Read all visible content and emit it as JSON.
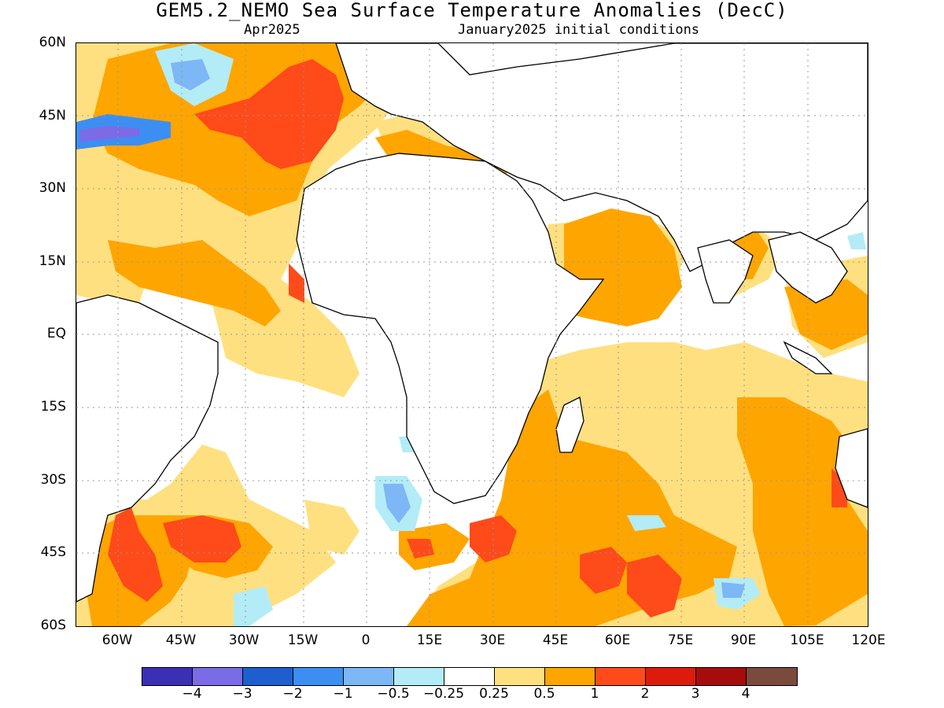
{
  "title": "GEM5.2_NEMO Sea Surface Temperature Anomalies (DecC)",
  "subtitle_left": "Apr2025",
  "subtitle_right": "January2025 initial conditions",
  "lat_labels": [
    "60N",
    "45N",
    "30N",
    "15N",
    "EQ",
    "15S",
    "30S",
    "45S",
    "60S"
  ],
  "lon_labels": [
    "60W",
    "45W",
    "30W",
    "15W",
    "0",
    "15E",
    "30E",
    "45E",
    "60E",
    "75E",
    "90E",
    "105E",
    "120E"
  ],
  "colorbar": {
    "colors": [
      "#3a2fb5",
      "#7b6be6",
      "#1e5fcf",
      "#3d8ef2",
      "#7db7f5",
      "#b3ecf6",
      "#ffffff",
      "#ffe080",
      "#ffa500",
      "#ff4a1a",
      "#dd1b0d",
      "#a50d0d",
      "#7a4a3c"
    ],
    "tick_labels": [
      "−4",
      "−3",
      "−2",
      "−1",
      "−0.5",
      "−0.25",
      "0.25",
      "0.5",
      "1",
      "2",
      "3",
      "4"
    ]
  },
  "colors": {
    "land": "#ffffff",
    "anom_0_25_0_5": "#ffe080",
    "anom_0_5_1": "#ffa500",
    "anom_1_2": "#ff4a1a",
    "anom_2_3": "#dd1b0d",
    "anom_neg_0_25": "#b3ecf6",
    "anom_neg_0_5": "#7db7f5",
    "anom_neg_1": "#3d8ef2",
    "anom_neg_2": "#1e5fcf",
    "anom_neg_3": "#7b6be6"
  }
}
